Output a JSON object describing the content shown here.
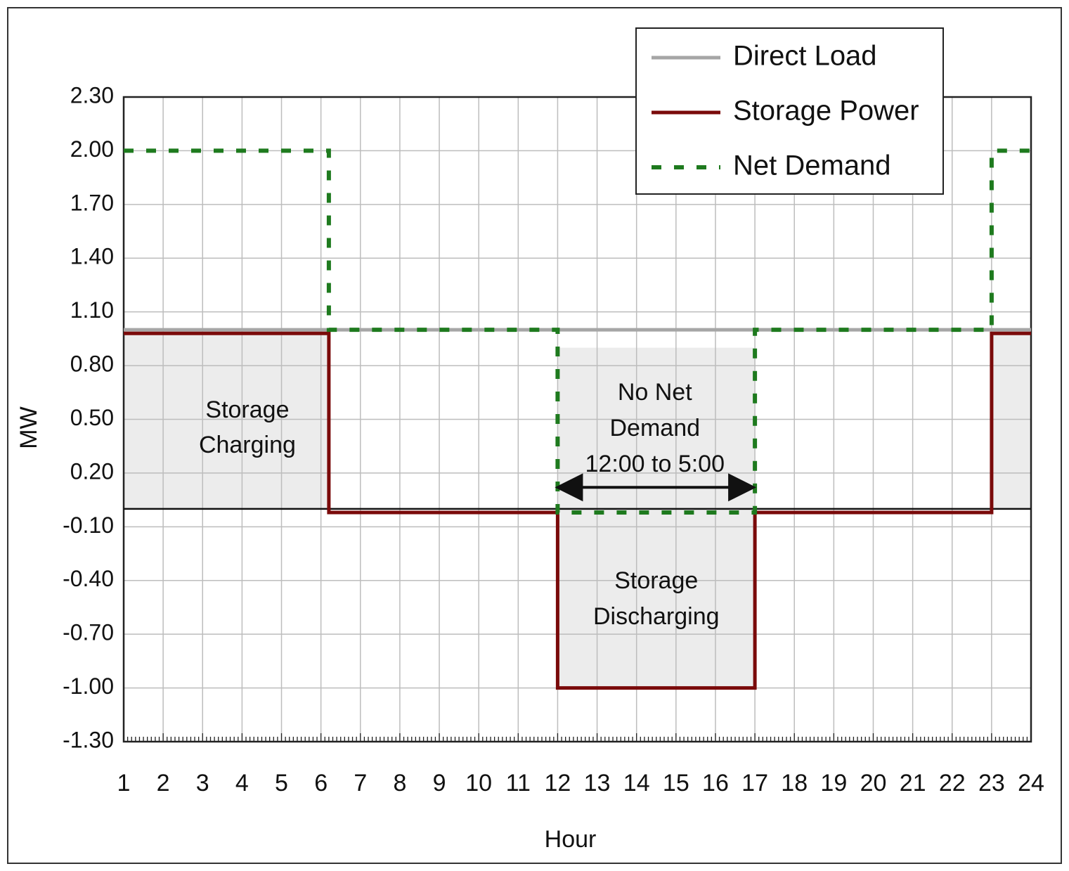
{
  "chart_data": {
    "type": "line",
    "xlabel": "Hour",
    "ylabel": "MW",
    "x_ticks": [
      "1",
      "2",
      "3",
      "4",
      "5",
      "6",
      "7",
      "8",
      "9",
      "10",
      "11",
      "12",
      "13",
      "14",
      "15",
      "16",
      "17",
      "18",
      "19",
      "20",
      "21",
      "22",
      "23",
      "24"
    ],
    "y_ticks": [
      "2.30",
      "2.00",
      "1.70",
      "1.40",
      "1.10",
      "0.80",
      "0.50",
      "0.20",
      "-0.10",
      "-0.40",
      "-0.70",
      "-1.00",
      "-1.30"
    ],
    "xlim": [
      1,
      24
    ],
    "ylim": [
      -1.3,
      2.3
    ],
    "grid": true,
    "legend_position": "top-right",
    "series": [
      {
        "name": "Direct Load",
        "style": "solid",
        "color": "#a6a6a6",
        "points": [
          [
            1,
            1.0
          ],
          [
            24,
            1.0
          ]
        ]
      },
      {
        "name": "Storage Power",
        "style": "solid",
        "color": "#7a0a0a",
        "points": [
          [
            1,
            0.98
          ],
          [
            6.2,
            0.98
          ],
          [
            6.2,
            -0.02
          ],
          [
            12,
            -0.02
          ],
          [
            12,
            -1.0
          ],
          [
            17,
            -1.0
          ],
          [
            17,
            -0.02
          ],
          [
            23,
            -0.02
          ],
          [
            23,
            0.98
          ],
          [
            24,
            0.98
          ]
        ]
      },
      {
        "name": "Net Demand",
        "style": "dashed",
        "color": "#1e7a1e",
        "points": [
          [
            1,
            2.0
          ],
          [
            6.2,
            2.0
          ],
          [
            6.2,
            1.0
          ],
          [
            12,
            1.0
          ],
          [
            12,
            -0.02
          ],
          [
            17,
            -0.02
          ],
          [
            17,
            1.0
          ],
          [
            23,
            1.0
          ],
          [
            23,
            2.0
          ],
          [
            24,
            2.0
          ]
        ]
      }
    ],
    "shaded_regions": [
      {
        "x": [
          1,
          6.2
        ],
        "y": [
          0,
          0.98
        ]
      },
      {
        "x": [
          12,
          17
        ],
        "y": [
          -1.0,
          0.9
        ]
      },
      {
        "x": [
          23,
          24
        ],
        "y": [
          0,
          0.98
        ]
      }
    ],
    "annotations": {
      "charging": {
        "lines": [
          "Storage",
          "Charging"
        ]
      },
      "no_net_demand": {
        "lines": [
          "No Net",
          "Demand",
          "12:00 to 5:00"
        ]
      },
      "discharging": {
        "lines": [
          "Storage",
          "Discharging"
        ]
      }
    },
    "arrow": {
      "from": 12,
      "to": 17,
      "y": 0.12
    }
  }
}
